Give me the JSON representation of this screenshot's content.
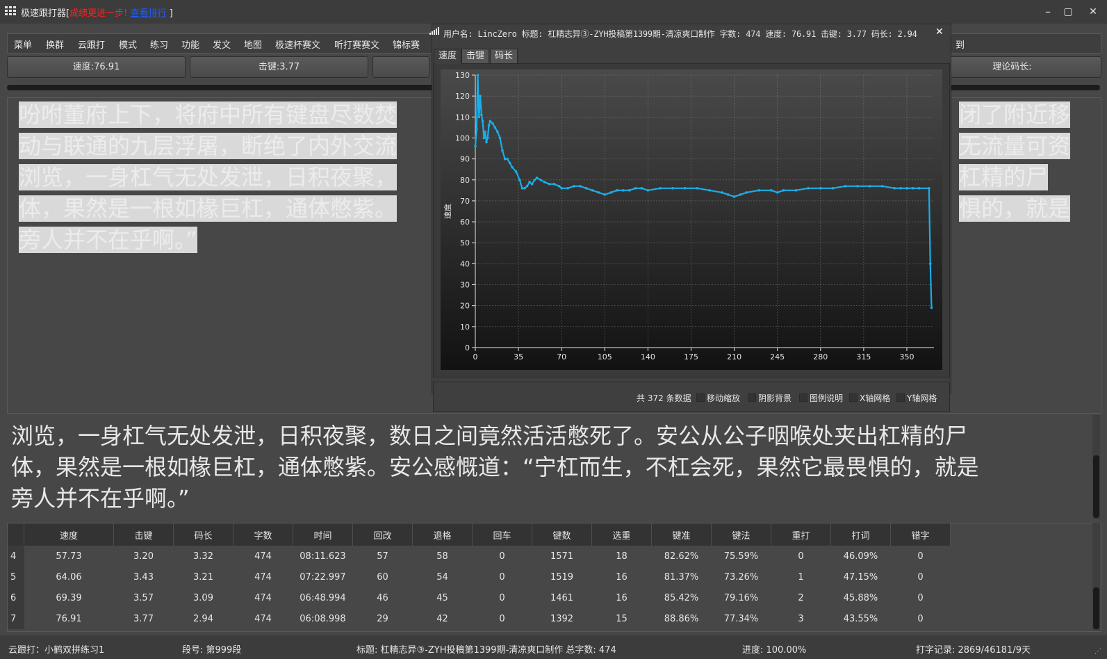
{
  "window": {
    "title": "极速跟打器",
    "title_bracket_open": "[",
    "title_red": "成绩更进一步!",
    "title_link": "查看排行",
    "title_bracket_close": " ]",
    "minimize": "–",
    "maximize": "▢",
    "close": "✕"
  },
  "menu": [
    "菜单",
    "换群",
    "云跟打",
    "模式",
    "练习",
    "功能",
    "发文",
    "地图",
    "极速杯赛文",
    "听打赛赛文",
    "锦标赛",
    "到"
  ],
  "stats": {
    "speed": "速度:76.91",
    "keystroke": "击键:3.77",
    "theory_code_len": "理论码长:"
  },
  "text": {
    "upper_lines": [
      "吩咐董府上下，将府中所有键盘尽数焚",
      "动与联通的九层浮屠，断绝了内外交流",
      "浏览，一身杠气无处发泄，日积夜聚，",
      "体，果然是一根如椽巨杠，通体憋紫。",
      "旁人并不在乎啊。”"
    ],
    "upper_right_lines": [
      "闭了附近移",
      "无流量可资",
      "杠精的尸",
      "惧的，就是"
    ],
    "lower_lines": [
      "浏览，一身杠气无处发泄，日积夜聚，数日之间竟然活活憋死了。安公从公子咽喉处夹出杠精的尸",
      "体，果然是一根如椽巨杠，通体憋紫。安公感慨道：“宁杠而生，不杠会死，果然它最畏惧的，就是",
      "旁人并不在乎啊。”"
    ]
  },
  "table": {
    "headers": [
      "速度",
      "击键",
      "码长",
      "字数",
      "时间",
      "回改",
      "退格",
      "回车",
      "键数",
      "选重",
      "键准",
      "键法",
      "重打",
      "打词",
      "错字"
    ],
    "rows": [
      {
        "n": "4",
        "cells": [
          "57.73",
          "3.20",
          "3.32",
          "474",
          "08:11.623",
          "57",
          "58",
          "0",
          "1571",
          "18",
          "82.62%",
          "75.59%",
          "0",
          "46.09%",
          "0"
        ]
      },
      {
        "n": "5",
        "cells": [
          "64.06",
          "3.43",
          "3.21",
          "474",
          "07:22.997",
          "60",
          "54",
          "0",
          "1519",
          "16",
          "81.37%",
          "73.26%",
          "1",
          "47.15%",
          "0"
        ]
      },
      {
        "n": "6",
        "cells": [
          "69.39",
          "3.57",
          "3.09",
          "474",
          "06:48.994",
          "46",
          "45",
          "0",
          "1461",
          "16",
          "85.42%",
          "79.16%",
          "2",
          "45.88%",
          "0"
        ]
      },
      {
        "n": "7",
        "cells": [
          "76.91",
          "3.77",
          "2.94",
          "474",
          "06:08.998",
          "29",
          "42",
          "0",
          "1392",
          "15",
          "88.86%",
          "77.34%",
          "3",
          "43.55%",
          "0"
        ]
      }
    ]
  },
  "status": {
    "cloud": "云跟打：小鹤双拼练习1",
    "paragraph": "段号: 第999段",
    "title": "标题: 杠精志异③-ZYH投稿第1399期-清凉爽口制作 总字数: 474",
    "progress": "进度: 100.00%",
    "record": "打字记录: 2869/46181/9天"
  },
  "dialog": {
    "title": "用户名: LincZero 标题: 杠精志异③-ZYH投稿第1399期-清凉爽口制作 字数: 474 速度: 76.91 击键: 3.77 码长: 2.94",
    "close": "✕",
    "tabs": [
      "速度",
      "击键",
      "码长"
    ],
    "active_tab": 0,
    "data_count_prefix": "共",
    "data_count": "372",
    "data_count_suffix": "条数据",
    "options": [
      "移动缩放",
      "阴影背景",
      "图例说明",
      "X轴网格",
      "Y轴网格"
    ]
  },
  "colors": {
    "line": "#19aee8",
    "accent_red": "#ff2020",
    "link_blue": "#1c5cff"
  },
  "chart_data": {
    "type": "line",
    "ylabel": "速度",
    "xlim": [
      0,
      372
    ],
    "ylim": [
      0,
      130
    ],
    "x_ticks": [
      0,
      35,
      70,
      105,
      140,
      175,
      210,
      245,
      280,
      315,
      350
    ],
    "y_ticks": [
      0,
      10,
      20,
      30,
      40,
      50,
      60,
      70,
      80,
      90,
      100,
      110,
      120,
      130
    ],
    "grid": true,
    "series": [
      {
        "x": [
          0,
          1,
          2,
          3,
          4,
          5,
          6,
          7,
          8,
          9,
          10,
          11,
          12,
          14,
          16,
          18,
          20,
          22,
          24,
          26,
          28,
          30,
          33,
          36,
          38,
          40,
          42,
          44,
          46,
          48,
          50,
          53,
          56,
          60,
          64,
          68,
          70,
          75,
          80,
          85,
          90,
          95,
          100,
          105,
          110,
          115,
          120,
          125,
          130,
          135,
          140,
          150,
          160,
          170,
          180,
          190,
          200,
          205,
          210,
          215,
          220,
          230,
          240,
          245,
          250,
          260,
          270,
          280,
          290,
          300,
          310,
          320,
          330,
          340,
          345,
          350,
          355,
          360,
          368,
          369,
          370
        ],
        "y": [
          96,
          104,
          130,
          110,
          120,
          111,
          108,
          100,
          103,
          98,
          100,
          106,
          108,
          107,
          105,
          103,
          100,
          94,
          90,
          90,
          88,
          86,
          84,
          80,
          76,
          76,
          77,
          79,
          78,
          80,
          81,
          80,
          79,
          78,
          78,
          77,
          76,
          76,
          77,
          77,
          76,
          75,
          74,
          73,
          74,
          75,
          75,
          75,
          76,
          76,
          75,
          76,
          76,
          76,
          76,
          75,
          74,
          73,
          72,
          73,
          74,
          75,
          75,
          74,
          75,
          75,
          76,
          76,
          76,
          77,
          77,
          77,
          77,
          76,
          76,
          76,
          76,
          76,
          76,
          40,
          19
        ]
      }
    ]
  }
}
